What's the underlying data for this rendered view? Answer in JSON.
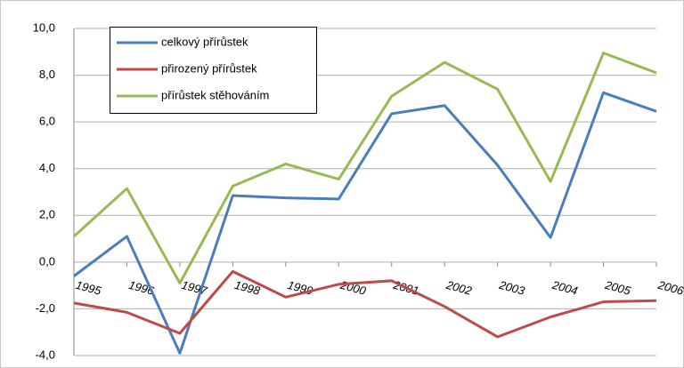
{
  "chart_data": {
    "type": "line",
    "categories": [
      "1995",
      "1996",
      "1997",
      "1998",
      "1999",
      "2000",
      "2001",
      "2002",
      "2003",
      "2004",
      "2005",
      "2006"
    ],
    "series": [
      {
        "name": "celkový přírůstek",
        "color": "#4a7ebb",
        "values": [
          -0.6,
          1.1,
          -3.9,
          2.85,
          2.75,
          2.7,
          6.35,
          6.7,
          4.15,
          1.05,
          7.25,
          6.45
        ]
      },
      {
        "name": "přirozený přírůstek",
        "color": "#be4b48",
        "values": [
          -1.75,
          -2.15,
          -3.05,
          -0.4,
          -1.5,
          -0.95,
          -0.8,
          -1.9,
          -3.2,
          -2.35,
          -1.7,
          -1.65
        ]
      },
      {
        "name": "přírůstek stěhováním",
        "color": "#98b954",
        "values": [
          1.1,
          3.15,
          -0.9,
          3.25,
          4.2,
          3.55,
          7.1,
          8.55,
          7.4,
          3.45,
          8.95,
          8.1
        ]
      }
    ],
    "ylim": [
      -4,
      10
    ],
    "yticks": [
      {
        "value": -4,
        "label": "-4,0"
      },
      {
        "value": -2,
        "label": "-2,0"
      },
      {
        "value": 0,
        "label": "0,0"
      },
      {
        "value": 2,
        "label": "2,0"
      },
      {
        "value": 4,
        "label": "4,0"
      },
      {
        "value": 6,
        "label": "6,0"
      },
      {
        "value": 8,
        "label": "8,0"
      },
      {
        "value": 10,
        "label": "10,0"
      }
    ],
    "grid": true,
    "legend": "upper left"
  }
}
